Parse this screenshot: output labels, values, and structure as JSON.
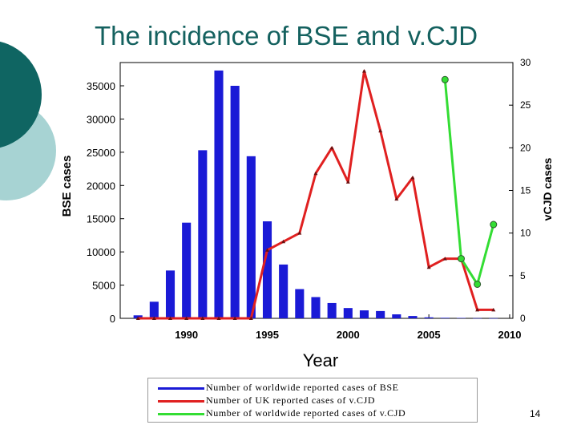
{
  "slide": {
    "title": "The incidence of BSE and v.CJD",
    "page_number": "14",
    "accent_color": "#14615f",
    "decor_color": "#a7d3d3"
  },
  "legend": [
    {
      "label": "Number of worldwide reported cases of BSE",
      "color": "#1a1ad6"
    },
    {
      "label": "Number of UK reported cases of v.CJD",
      "color": "#e02020"
    },
    {
      "label": "Number of worldwide reported cases of v.CJD",
      "color": "#33dd33"
    }
  ],
  "chart_data": {
    "type": "bar",
    "xlabel": "Year",
    "ylabel_left": "BSE cases",
    "ylabel_right": "vCJD cases",
    "x_ticks": [
      1990,
      1995,
      2000,
      2005,
      2010
    ],
    "y_left_ticks": [
      0,
      5000,
      10000,
      15000,
      20000,
      25000,
      30000,
      35000
    ],
    "y_right_ticks": [
      0,
      5,
      10,
      15,
      20,
      25,
      30
    ],
    "xlim": [
      1985.9,
      2010.2
    ],
    "ylim_left": [
      0,
      38500
    ],
    "ylim_right": [
      0,
      30
    ],
    "grid": false,
    "series": [
      {
        "name": "BSE cases",
        "kind": "bar",
        "axis": "left",
        "color": "#1a1ad6",
        "x": [
          1987,
          1988,
          1989,
          1990,
          1991,
          1992,
          1993,
          1994,
          1995,
          1996,
          1997,
          1998,
          1999,
          2000,
          2001,
          2002,
          2003,
          2004,
          2005,
          2006,
          2007,
          2008,
          2009
        ],
        "values": [
          450,
          2500,
          7200,
          14400,
          25300,
          37300,
          35000,
          24400,
          14600,
          8100,
          4400,
          3200,
          2300,
          1550,
          1200,
          1100,
          600,
          350,
          150,
          80,
          60,
          30,
          20
        ]
      },
      {
        "name": "UK vCJD cases",
        "kind": "line",
        "axis": "right",
        "color": "#e02020",
        "x": [
          1987,
          1988,
          1989,
          1990,
          1991,
          1992,
          1993,
          1994,
          1995,
          1996,
          1997,
          1998,
          1999,
          2000,
          2001,
          2002,
          2003,
          2004,
          2005,
          2006,
          2007,
          2008,
          2009
        ],
        "values": [
          0,
          0,
          0,
          0,
          0,
          0,
          0,
          0,
          8,
          9,
          10,
          17,
          20,
          16,
          29,
          22,
          14,
          16.5,
          6,
          7,
          7,
          1,
          1
        ]
      },
      {
        "name": "Worldwide vCJD cases",
        "kind": "line",
        "axis": "right",
        "color": "#33dd33",
        "x": [
          2006,
          2007,
          2008,
          2009
        ],
        "values": [
          28,
          7,
          4,
          11
        ]
      }
    ]
  }
}
